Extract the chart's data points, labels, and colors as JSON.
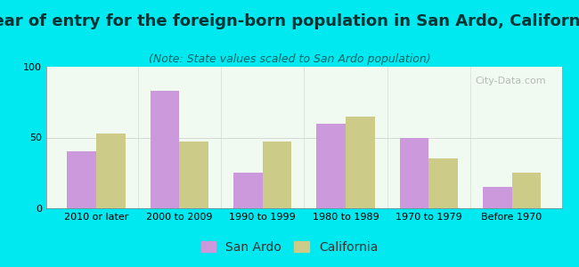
{
  "title": "Year of entry for the foreign-born population in San Ardo, California",
  "subtitle": "(Note: State values scaled to San Ardo population)",
  "categories": [
    "2010 or later",
    "2000 to 2009",
    "1990 to 1999",
    "1980 to 1989",
    "1970 to 1979",
    "Before 1970"
  ],
  "san_ardo": [
    40,
    83,
    25,
    60,
    50,
    15
  ],
  "california": [
    53,
    47,
    47,
    65,
    35,
    25
  ],
  "san_ardo_color": "#cc99dd",
  "california_color": "#cccc88",
  "background_color": "#00e8f0",
  "plot_bg_color": "#f0faf0",
  "ylim": [
    0,
    100
  ],
  "yticks": [
    0,
    50,
    100
  ],
  "bar_width": 0.35,
  "title_fontsize": 13,
  "subtitle_fontsize": 9,
  "tick_fontsize": 8,
  "watermark": "City-Data.com",
  "legend_fontsize": 10
}
